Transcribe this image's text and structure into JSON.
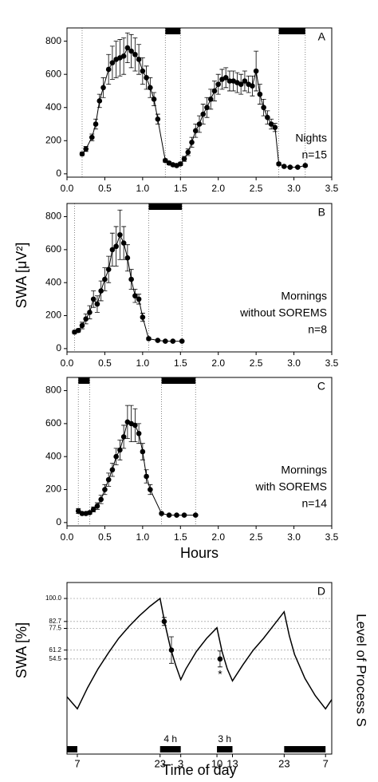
{
  "chart_data": [
    {
      "type": "line",
      "panel_label": "A",
      "annotations": [
        "Nights",
        "n=15"
      ],
      "color": "#000000",
      "x": [
        0.2,
        0.25,
        0.33,
        0.38,
        0.43,
        0.48,
        0.55,
        0.6,
        0.65,
        0.7,
        0.75,
        0.8,
        0.85,
        0.9,
        0.95,
        1.0,
        1.05,
        1.1,
        1.15,
        1.2,
        1.3,
        1.35,
        1.4,
        1.45,
        1.5,
        1.55,
        1.6,
        1.65,
        1.7,
        1.75,
        1.8,
        1.85,
        1.9,
        1.95,
        2.0,
        2.05,
        2.1,
        2.15,
        2.2,
        2.25,
        2.3,
        2.35,
        2.4,
        2.45,
        2.5,
        2.55,
        2.6,
        2.65,
        2.7,
        2.75,
        2.8,
        2.87,
        2.95,
        3.05,
        3.15
      ],
      "values": [
        120,
        150,
        220,
        300,
        440,
        520,
        630,
        670,
        690,
        700,
        710,
        760,
        740,
        720,
        690,
        620,
        580,
        520,
        450,
        330,
        80,
        65,
        55,
        50,
        60,
        90,
        130,
        190,
        260,
        300,
        360,
        400,
        450,
        500,
        540,
        570,
        580,
        560,
        560,
        550,
        540,
        560,
        540,
        530,
        620,
        480,
        400,
        340,
        300,
        280,
        60,
        45,
        40,
        40,
        50
      ],
      "errors": [
        10,
        15,
        20,
        30,
        40,
        60,
        90,
        100,
        110,
        110,
        110,
        90,
        100,
        100,
        90,
        80,
        70,
        60,
        40,
        30,
        10,
        10,
        8,
        8,
        10,
        15,
        20,
        30,
        40,
        50,
        60,
        60,
        60,
        60,
        60,
        60,
        60,
        60,
        60,
        60,
        60,
        60,
        50,
        60,
        120,
        60,
        50,
        40,
        30,
        25,
        8,
        6,
        5,
        5,
        6
      ],
      "sleep_periods": [
        [
          1.3,
          1.5
        ],
        [
          2.8,
          3.15
        ]
      ],
      "dotted_lines": [
        0.2,
        1.3,
        1.5,
        2.8,
        3.15
      ],
      "xlim": [
        0,
        3.5
      ],
      "ylim": [
        -20,
        880
      ],
      "xticks": [
        {
          "value": 0,
          "label": "0.0"
        },
        {
          "value": 0.5,
          "label": "0.5"
        },
        {
          "value": 1,
          "label": "1.0"
        },
        {
          "value": 1.5,
          "label": "1.5"
        },
        {
          "value": 2,
          "label": "2.0"
        },
        {
          "value": 2.5,
          "label": "2.5"
        },
        {
          "value": 3,
          "label": "3.0"
        },
        {
          "value": 3.5,
          "label": "3.5"
        }
      ],
      "yticks": [
        0,
        200,
        400,
        600,
        800
      ]
    },
    {
      "type": "line",
      "panel_label": "B",
      "annotations": [
        "Mornings",
        "without SOREMS",
        "n=8"
      ],
      "ylabel": "SWA [μV²]",
      "color": "#000000",
      "x": [
        0.1,
        0.15,
        0.2,
        0.25,
        0.3,
        0.35,
        0.4,
        0.45,
        0.5,
        0.55,
        0.6,
        0.65,
        0.7,
        0.75,
        0.8,
        0.85,
        0.9,
        0.95,
        1.0,
        1.08,
        1.2,
        1.3,
        1.4,
        1.52
      ],
      "values": [
        100,
        110,
        140,
        180,
        220,
        300,
        270,
        350,
        420,
        480,
        600,
        620,
        690,
        640,
        550,
        420,
        320,
        300,
        190,
        60,
        50,
        45,
        45,
        45
      ],
      "errors": [
        10,
        10,
        20,
        30,
        40,
        50,
        50,
        60,
        70,
        80,
        100,
        120,
        150,
        100,
        80,
        60,
        40,
        30,
        25,
        8,
        5,
        5,
        5,
        5
      ],
      "sleep_periods": [
        [
          1.08,
          1.52
        ]
      ],
      "dotted_lines": [
        0.1,
        1.08,
        1.52
      ],
      "xlim": [
        0,
        3.5
      ],
      "ylim": [
        -20,
        880
      ],
      "xticks": [
        {
          "value": 0,
          "label": "0.0"
        },
        {
          "value": 0.5,
          "label": "0.5"
        },
        {
          "value": 1,
          "label": "1.0"
        },
        {
          "value": 1.5,
          "label": "1.5"
        },
        {
          "value": 2,
          "label": "2.0"
        },
        {
          "value": 2.5,
          "label": "2.5"
        },
        {
          "value": 3,
          "label": "3.0"
        },
        {
          "value": 3.5,
          "label": "3.5"
        }
      ],
      "yticks": [
        0,
        200,
        400,
        600,
        800
      ]
    },
    {
      "type": "line",
      "panel_label": "C",
      "annotations": [
        "Mornings",
        "with SOREMS",
        "n=14"
      ],
      "xlabel": "Hours",
      "color": "#000000",
      "x": [
        0.15,
        0.2,
        0.25,
        0.3,
        0.35,
        0.4,
        0.45,
        0.5,
        0.55,
        0.6,
        0.65,
        0.7,
        0.75,
        0.8,
        0.85,
        0.9,
        0.95,
        1.0,
        1.05,
        1.1,
        1.25,
        1.35,
        1.45,
        1.55,
        1.7
      ],
      "values": [
        70,
        55,
        55,
        60,
        80,
        100,
        140,
        200,
        260,
        320,
        400,
        440,
        520,
        610,
        600,
        590,
        540,
        430,
        280,
        200,
        55,
        45,
        45,
        45,
        45
      ],
      "errors": [
        15,
        8,
        8,
        10,
        15,
        20,
        25,
        30,
        40,
        40,
        50,
        60,
        70,
        100,
        110,
        100,
        60,
        50,
        40,
        30,
        6,
        5,
        5,
        5,
        5
      ],
      "sleep_periods": [
        [
          0.15,
          0.3
        ],
        [
          1.25,
          1.7
        ]
      ],
      "dotted_lines": [
        0.15,
        0.3,
        1.25,
        1.7
      ],
      "xlim": [
        0,
        3.5
      ],
      "ylim": [
        -20,
        880
      ],
      "xticks": [
        {
          "value": 0,
          "label": "0.0"
        },
        {
          "value": 0.5,
          "label": "0.5"
        },
        {
          "value": 1,
          "label": "1.0"
        },
        {
          "value": 1.5,
          "label": "1.5"
        },
        {
          "value": 2,
          "label": "2.0"
        },
        {
          "value": 2.5,
          "label": "2.5"
        },
        {
          "value": 3,
          "label": "3.0"
        },
        {
          "value": 3.5,
          "label": "3.5"
        }
      ],
      "yticks": [
        0,
        200,
        400,
        600,
        800
      ]
    },
    {
      "type": "process",
      "panel_label": "D",
      "ylabel": "SWA [%]",
      "y2label": "Level of Process S",
      "xlabel": "Time of day",
      "color": "#000000",
      "x": [
        -2,
        0,
        2,
        4,
        6,
        8,
        10,
        12,
        14,
        16,
        17,
        18,
        19,
        20,
        21,
        23,
        25,
        27,
        28,
        29,
        30,
        32,
        34,
        36,
        38,
        40,
        41,
        42,
        44,
        46,
        48,
        49.2
      ],
      "values": [
        26,
        17,
        33,
        47,
        59,
        70,
        79,
        87,
        94,
        100,
        80,
        63,
        50,
        39,
        47,
        60,
        70,
        78,
        60,
        47,
        38,
        50,
        61,
        70,
        80,
        90,
        72,
        58,
        40,
        27,
        17,
        24
      ],
      "points": {
        "x": [
          16.8,
          18.2,
          27.6
        ],
        "values": [
          82.7,
          61.2,
          54.5
        ],
        "errors": [
          3,
          10,
          6
        ]
      },
      "significance": "*",
      "sleep_periods": [
        [
          -2,
          0
        ],
        [
          16,
          20
        ],
        [
          27,
          30
        ],
        [
          40,
          48
        ]
      ],
      "sleep_labels": [
        {
          "period": 1,
          "label": "4 h"
        },
        {
          "period": 2,
          "label": "3 h"
        }
      ],
      "xlim": [
        -2,
        49.2
      ],
      "ylim": [
        -17,
        112
      ],
      "xticks": [
        {
          "value": 0,
          "label": "7"
        },
        {
          "value": 16,
          "label": "23"
        },
        {
          "value": 20,
          "label": "3"
        },
        {
          "value": 27,
          "label": "10"
        },
        {
          "value": 30,
          "label": "13"
        },
        {
          "value": 40,
          "label": "23"
        },
        {
          "value": 48,
          "label": "7"
        }
      ],
      "yticks": [
        {
          "value": 100,
          "label": "100.0"
        },
        82.7,
        77.5,
        61.2,
        54.5
      ]
    }
  ]
}
